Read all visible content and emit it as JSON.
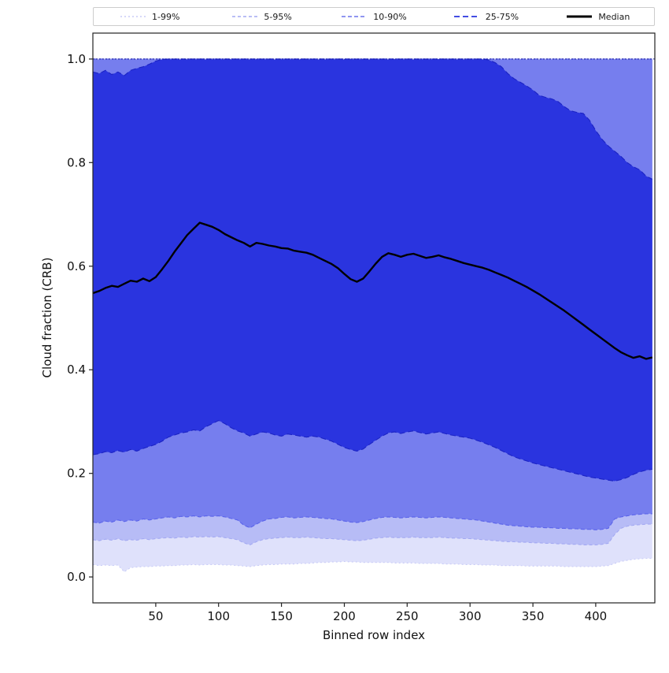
{
  "figure": {
    "xlabel": "Binned row index",
    "ylabel": "Cloud fraction (CRB)",
    "x_ticks": [
      "50",
      "100",
      "150",
      "200",
      "250",
      "300",
      "350",
      "400"
    ],
    "y_ticks": [
      "0.0",
      "0.2",
      "0.4",
      "0.6",
      "0.8",
      "1.0"
    ],
    "y_tick_values": [
      0.0,
      0.2,
      0.4,
      0.6,
      0.8,
      1.0
    ],
    "x_tick_values": [
      50,
      100,
      150,
      200,
      250,
      300,
      350,
      400
    ],
    "xlim": [
      0,
      447
    ],
    "ylim": [
      -0.05,
      1.05
    ],
    "background": "#ffffff",
    "spine_color": "#222222"
  },
  "legend": {
    "entries": [
      {
        "label": "1-99%",
        "color": "#c9ccf7",
        "dash": "2 3",
        "width": 1.5
      },
      {
        "label": "5-95%",
        "color": "#a3a9f2",
        "dash": "4 3",
        "width": 1.5
      },
      {
        "label": "10-90%",
        "color": "#6b73ec",
        "dash": "5 3",
        "width": 1.5
      },
      {
        "label": "25-75%",
        "color": "#2a34df",
        "dash": "7 4",
        "width": 1.8
      },
      {
        "label": "Median",
        "color": "#000000",
        "dash": "",
        "width": 3
      }
    ]
  },
  "chart_data": {
    "type": "area",
    "title": "",
    "xlabel": "Binned row index",
    "ylabel": "Cloud fraction (CRB)",
    "xlim": [
      0,
      447
    ],
    "ylim": [
      -0.05,
      1.05
    ],
    "legend_position": "top",
    "grid": false,
    "x": [
      0,
      5,
      10,
      15,
      20,
      25,
      30,
      35,
      40,
      45,
      50,
      55,
      60,
      65,
      70,
      75,
      80,
      85,
      90,
      95,
      100,
      105,
      110,
      115,
      120,
      125,
      130,
      135,
      140,
      145,
      150,
      155,
      160,
      165,
      170,
      175,
      180,
      185,
      190,
      195,
      200,
      205,
      210,
      215,
      220,
      225,
      230,
      235,
      240,
      245,
      250,
      255,
      260,
      265,
      270,
      275,
      280,
      285,
      290,
      295,
      300,
      305,
      310,
      315,
      320,
      325,
      330,
      335,
      340,
      345,
      350,
      355,
      360,
      365,
      370,
      375,
      380,
      385,
      390,
      395,
      400,
      405,
      410,
      415,
      420,
      425,
      430,
      435,
      440,
      445
    ],
    "series": [
      {
        "name": "p1",
        "values": [
          0.024,
          0.022,
          0.023,
          0.022,
          0.023,
          0.01,
          0.018,
          0.019,
          0.02,
          0.02,
          0.021,
          0.021,
          0.022,
          0.022,
          0.023,
          0.023,
          0.024,
          0.023,
          0.024,
          0.024,
          0.024,
          0.023,
          0.023,
          0.022,
          0.021,
          0.02,
          0.022,
          0.023,
          0.024,
          0.024,
          0.025,
          0.025,
          0.025,
          0.026,
          0.026,
          0.027,
          0.028,
          0.028,
          0.029,
          0.029,
          0.03,
          0.029,
          0.029,
          0.028,
          0.028,
          0.028,
          0.028,
          0.028,
          0.027,
          0.027,
          0.027,
          0.027,
          0.026,
          0.026,
          0.026,
          0.026,
          0.025,
          0.025,
          0.025,
          0.024,
          0.024,
          0.024,
          0.023,
          0.023,
          0.023,
          0.022,
          0.022,
          0.022,
          0.022,
          0.021,
          0.021,
          0.021,
          0.021,
          0.021,
          0.021,
          0.02,
          0.02,
          0.02,
          0.02,
          0.02,
          0.02,
          0.021,
          0.022,
          0.026,
          0.03,
          0.032,
          0.034,
          0.035,
          0.036,
          0.036
        ]
      },
      {
        "name": "p5",
        "values": [
          0.072,
          0.07,
          0.073,
          0.071,
          0.074,
          0.07,
          0.072,
          0.071,
          0.074,
          0.072,
          0.074,
          0.075,
          0.076,
          0.075,
          0.077,
          0.076,
          0.078,
          0.077,
          0.078,
          0.077,
          0.078,
          0.076,
          0.074,
          0.072,
          0.066,
          0.062,
          0.068,
          0.072,
          0.074,
          0.075,
          0.076,
          0.077,
          0.076,
          0.076,
          0.077,
          0.076,
          0.075,
          0.074,
          0.074,
          0.073,
          0.072,
          0.071,
          0.07,
          0.071,
          0.073,
          0.075,
          0.076,
          0.077,
          0.076,
          0.076,
          0.076,
          0.077,
          0.076,
          0.076,
          0.076,
          0.077,
          0.076,
          0.075,
          0.075,
          0.074,
          0.074,
          0.073,
          0.072,
          0.071,
          0.07,
          0.069,
          0.068,
          0.068,
          0.067,
          0.067,
          0.066,
          0.066,
          0.065,
          0.065,
          0.064,
          0.064,
          0.063,
          0.063,
          0.062,
          0.062,
          0.062,
          0.063,
          0.065,
          0.082,
          0.094,
          0.098,
          0.1,
          0.101,
          0.102,
          0.102
        ]
      },
      {
        "name": "p10",
        "values": [
          0.106,
          0.104,
          0.108,
          0.106,
          0.11,
          0.107,
          0.11,
          0.108,
          0.112,
          0.11,
          0.112,
          0.114,
          0.116,
          0.114,
          0.117,
          0.116,
          0.118,
          0.116,
          0.118,
          0.117,
          0.118,
          0.116,
          0.113,
          0.11,
          0.1,
          0.095,
          0.102,
          0.108,
          0.112,
          0.113,
          0.115,
          0.116,
          0.114,
          0.115,
          0.116,
          0.115,
          0.114,
          0.113,
          0.112,
          0.11,
          0.108,
          0.106,
          0.105,
          0.107,
          0.11,
          0.113,
          0.115,
          0.116,
          0.115,
          0.114,
          0.115,
          0.116,
          0.115,
          0.114,
          0.115,
          0.116,
          0.115,
          0.114,
          0.113,
          0.112,
          0.111,
          0.11,
          0.108,
          0.106,
          0.104,
          0.102,
          0.1,
          0.099,
          0.098,
          0.097,
          0.096,
          0.096,
          0.095,
          0.095,
          0.094,
          0.094,
          0.093,
          0.093,
          0.092,
          0.092,
          0.091,
          0.092,
          0.094,
          0.112,
          0.116,
          0.118,
          0.12,
          0.121,
          0.122,
          0.122
        ]
      },
      {
        "name": "p25",
        "values": [
          0.236,
          0.238,
          0.242,
          0.24,
          0.244,
          0.241,
          0.246,
          0.243,
          0.248,
          0.252,
          0.256,
          0.262,
          0.27,
          0.274,
          0.278,
          0.28,
          0.284,
          0.282,
          0.29,
          0.296,
          0.302,
          0.296,
          0.288,
          0.282,
          0.278,
          0.272,
          0.276,
          0.28,
          0.278,
          0.274,
          0.272,
          0.276,
          0.274,
          0.272,
          0.27,
          0.272,
          0.27,
          0.266,
          0.262,
          0.256,
          0.25,
          0.246,
          0.243,
          0.247,
          0.256,
          0.264,
          0.272,
          0.278,
          0.28,
          0.277,
          0.28,
          0.282,
          0.279,
          0.276,
          0.278,
          0.28,
          0.277,
          0.274,
          0.272,
          0.27,
          0.268,
          0.264,
          0.26,
          0.255,
          0.25,
          0.244,
          0.238,
          0.232,
          0.228,
          0.224,
          0.22,
          0.217,
          0.214,
          0.211,
          0.208,
          0.205,
          0.202,
          0.199,
          0.196,
          0.193,
          0.191,
          0.189,
          0.187,
          0.185,
          0.188,
          0.192,
          0.198,
          0.203,
          0.206,
          0.208
        ]
      },
      {
        "name": "median",
        "values": [
          0.548,
          0.552,
          0.558,
          0.562,
          0.56,
          0.566,
          0.572,
          0.57,
          0.576,
          0.571,
          0.579,
          0.594,
          0.61,
          0.628,
          0.644,
          0.66,
          0.672,
          0.684,
          0.68,
          0.676,
          0.67,
          0.662,
          0.656,
          0.65,
          0.645,
          0.638,
          0.645,
          0.643,
          0.64,
          0.638,
          0.635,
          0.634,
          0.63,
          0.628,
          0.626,
          0.622,
          0.616,
          0.61,
          0.604,
          0.596,
          0.585,
          0.575,
          0.57,
          0.576,
          0.59,
          0.605,
          0.618,
          0.625,
          0.622,
          0.618,
          0.622,
          0.624,
          0.62,
          0.616,
          0.618,
          0.621,
          0.617,
          0.614,
          0.61,
          0.606,
          0.603,
          0.6,
          0.597,
          0.593,
          0.588,
          0.583,
          0.578,
          0.572,
          0.566,
          0.56,
          0.553,
          0.546,
          0.538,
          0.53,
          0.522,
          0.514,
          0.505,
          0.496,
          0.487,
          0.478,
          0.469,
          0.46,
          0.451,
          0.442,
          0.434,
          0.428,
          0.423,
          0.426,
          0.421,
          0.424
        ]
      },
      {
        "name": "p75",
        "values": [
          0.975,
          0.972,
          0.978,
          0.97,
          0.975,
          0.968,
          0.978,
          0.982,
          0.985,
          0.99,
          0.996,
          0.999,
          1.0,
          1.0,
          1.0,
          1.0,
          1.0,
          1.0,
          1.0,
          1.0,
          1.0,
          1.0,
          1.0,
          1.0,
          1.0,
          1.0,
          1.0,
          1.0,
          1.0,
          1.0,
          1.0,
          1.0,
          1.0,
          1.0,
          1.0,
          1.0,
          1.0,
          1.0,
          1.0,
          1.0,
          1.0,
          1.0,
          1.0,
          1.0,
          1.0,
          1.0,
          1.0,
          1.0,
          1.0,
          1.0,
          1.0,
          1.0,
          1.0,
          1.0,
          1.0,
          1.0,
          1.0,
          1.0,
          1.0,
          1.0,
          1.0,
          1.0,
          1.0,
          0.998,
          0.993,
          0.985,
          0.972,
          0.962,
          0.955,
          0.948,
          0.94,
          0.93,
          0.926,
          0.923,
          0.918,
          0.908,
          0.9,
          0.897,
          0.895,
          0.882,
          0.862,
          0.845,
          0.832,
          0.822,
          0.812,
          0.8,
          0.792,
          0.786,
          0.774,
          0.768
        ]
      },
      {
        "name": "p90",
        "constant": 1.0
      },
      {
        "name": "p95",
        "constant": 1.0
      },
      {
        "name": "p99",
        "constant": 1.0
      }
    ],
    "bands": [
      {
        "label": "1-99%",
        "lower": "p1",
        "upper": "p99",
        "fill": "#dfe1fb",
        "edge": "#c9ccf7",
        "dash": "2 3"
      },
      {
        "label": "5-95%",
        "lower": "p5",
        "upper": "p95",
        "fill": "#b7bcf6",
        "edge": "#a3a9f2",
        "dash": "4 3"
      },
      {
        "label": "10-90%",
        "lower": "p10",
        "upper": "p90",
        "fill": "#767eee",
        "edge": "#5a63ea",
        "dash": "5 3"
      },
      {
        "label": "25-75%",
        "lower": "p25",
        "upper": "p75",
        "fill": "#2a34df",
        "edge": "#1b23c4",
        "dash": "7 4"
      }
    ],
    "median_line": {
      "series": "median",
      "label": "Median",
      "color": "#000000",
      "width": 2.4
    },
    "reference_line": {
      "y": 1.0,
      "color": "#15159a",
      "dash": "2 2",
      "width": 1
    }
  }
}
